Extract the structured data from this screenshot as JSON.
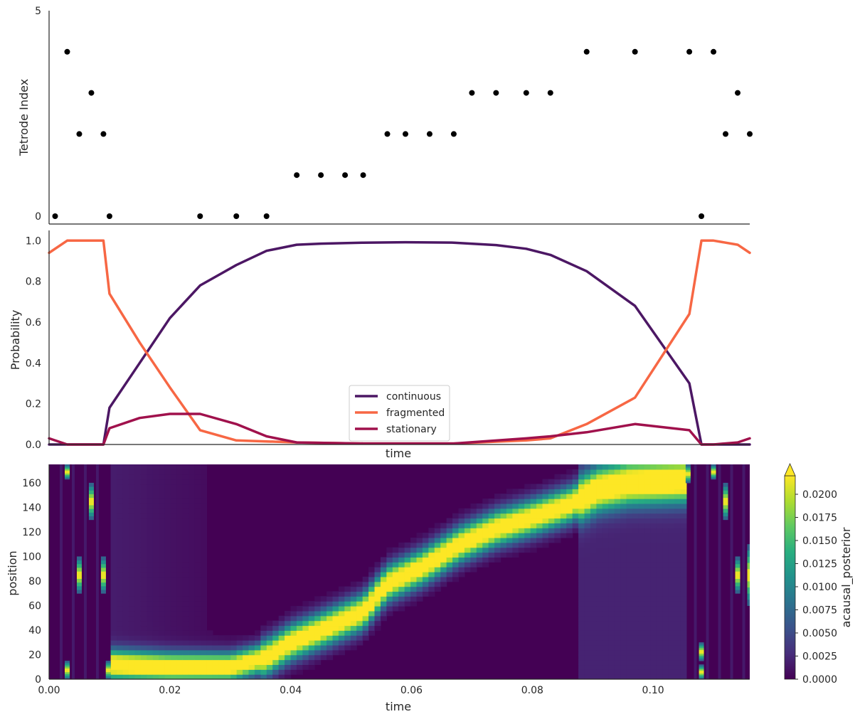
{
  "figure": {
    "colors": {
      "spikes": "#000000",
      "continuous": "#4c1764",
      "fragmented": "#f76744",
      "stationary": "#a0114c",
      "axis": "#262626"
    }
  },
  "chart_data": [
    {
      "type": "scatter",
      "ylabel": "Tetrode Index",
      "xlabel": "",
      "xlim": [
        0,
        0.116
      ],
      "ylim": [
        0,
        5
      ],
      "y_ticks": [
        "0",
        "5"
      ],
      "points": [
        {
          "x": 0.001,
          "y": 0
        },
        {
          "x": 0.003,
          "y": 4
        },
        {
          "x": 0.005,
          "y": 2
        },
        {
          "x": 0.007,
          "y": 3
        },
        {
          "x": 0.009,
          "y": 2
        },
        {
          "x": 0.01,
          "y": 0
        },
        {
          "x": 0.025,
          "y": 0
        },
        {
          "x": 0.031,
          "y": 0
        },
        {
          "x": 0.036,
          "y": 0
        },
        {
          "x": 0.041,
          "y": 1
        },
        {
          "x": 0.045,
          "y": 1
        },
        {
          "x": 0.049,
          "y": 1
        },
        {
          "x": 0.052,
          "y": 1
        },
        {
          "x": 0.056,
          "y": 2
        },
        {
          "x": 0.059,
          "y": 2
        },
        {
          "x": 0.063,
          "y": 2
        },
        {
          "x": 0.067,
          "y": 2
        },
        {
          "x": 0.07,
          "y": 3
        },
        {
          "x": 0.074,
          "y": 3
        },
        {
          "x": 0.079,
          "y": 3
        },
        {
          "x": 0.083,
          "y": 3
        },
        {
          "x": 0.089,
          "y": 4
        },
        {
          "x": 0.097,
          "y": 4
        },
        {
          "x": 0.106,
          "y": 4
        },
        {
          "x": 0.108,
          "y": 0
        },
        {
          "x": 0.11,
          "y": 4
        },
        {
          "x": 0.112,
          "y": 2
        },
        {
          "x": 0.114,
          "y": 3
        },
        {
          "x": 0.116,
          "y": 2
        }
      ]
    },
    {
      "type": "line",
      "xlabel": "time",
      "ylabel": "Probability",
      "xlim": [
        0,
        0.116
      ],
      "ylim": [
        0,
        1.05
      ],
      "y_ticks": [
        "0.0",
        "0.2",
        "0.4",
        "0.6",
        "0.8",
        "1.0"
      ],
      "legend": "lower-center",
      "series": [
        {
          "name": "continuous",
          "x": [
            0,
            0.003,
            0.009,
            0.01,
            0.015,
            0.02,
            0.025,
            0.031,
            0.036,
            0.041,
            0.045,
            0.052,
            0.059,
            0.067,
            0.074,
            0.079,
            0.083,
            0.089,
            0.097,
            0.106,
            0.108,
            0.11,
            0.114,
            0.116
          ],
          "y": [
            0.0,
            0.0,
            0.0,
            0.18,
            0.4,
            0.62,
            0.78,
            0.88,
            0.95,
            0.98,
            0.985,
            0.99,
            0.992,
            0.99,
            0.978,
            0.96,
            0.93,
            0.85,
            0.68,
            0.3,
            0.0,
            0.0,
            0.0,
            0.0
          ]
        },
        {
          "name": "fragmented",
          "x": [
            0,
            0.003,
            0.009,
            0.01,
            0.015,
            0.02,
            0.025,
            0.031,
            0.036,
            0.041,
            0.052,
            0.067,
            0.079,
            0.083,
            0.089,
            0.097,
            0.106,
            0.108,
            0.11,
            0.114,
            0.116
          ],
          "y": [
            0.94,
            1.0,
            1.0,
            0.74,
            0.5,
            0.28,
            0.07,
            0.02,
            0.015,
            0.01,
            0.005,
            0.005,
            0.02,
            0.03,
            0.1,
            0.23,
            0.64,
            1.0,
            1.0,
            0.98,
            0.94
          ]
        },
        {
          "name": "stationary",
          "x": [
            0,
            0.003,
            0.009,
            0.01,
            0.015,
            0.02,
            0.025,
            0.031,
            0.036,
            0.041,
            0.052,
            0.067,
            0.079,
            0.083,
            0.089,
            0.097,
            0.106,
            0.108,
            0.11,
            0.114,
            0.116
          ],
          "y": [
            0.03,
            0.0,
            0.0,
            0.08,
            0.13,
            0.15,
            0.15,
            0.1,
            0.04,
            0.01,
            0.005,
            0.005,
            0.03,
            0.04,
            0.06,
            0.1,
            0.07,
            0.0,
            0.0,
            0.01,
            0.03
          ]
        }
      ]
    },
    {
      "type": "heatmap",
      "xlabel": "time",
      "ylabel": "position",
      "xlim": [
        0,
        0.116
      ],
      "ylim": [
        0,
        175
      ],
      "x_ticks": [
        "0.00",
        "0.02",
        "0.04",
        "0.06",
        "0.08",
        "0.10"
      ],
      "y_ticks": [
        "0",
        "20",
        "40",
        "60",
        "80",
        "100",
        "120",
        "140",
        "160"
      ],
      "colormap": "viridis",
      "colorbar": {
        "label": "acausal_posterior",
        "range": [
          0,
          0.022
        ],
        "ticks": [
          "0.0000",
          "0.0025",
          "0.0050",
          "0.0075",
          "0.0100",
          "0.0125",
          "0.0150",
          "0.0175",
          "0.0200"
        ],
        "extend": "max"
      },
      "ridge": [
        {
          "t": 0.01,
          "pos": 12
        },
        {
          "t": 0.02,
          "pos": 10
        },
        {
          "t": 0.03,
          "pos": 10
        },
        {
          "t": 0.036,
          "pos": 18
        },
        {
          "t": 0.04,
          "pos": 30
        },
        {
          "t": 0.045,
          "pos": 40
        },
        {
          "t": 0.052,
          "pos": 55
        },
        {
          "t": 0.056,
          "pos": 78
        },
        {
          "t": 0.062,
          "pos": 92
        },
        {
          "t": 0.068,
          "pos": 110
        },
        {
          "t": 0.074,
          "pos": 123
        },
        {
          "t": 0.08,
          "pos": 132
        },
        {
          "t": 0.086,
          "pos": 142
        },
        {
          "t": 0.091,
          "pos": 155
        },
        {
          "t": 0.096,
          "pos": 160
        },
        {
          "t": 0.105,
          "pos": 162
        }
      ],
      "bright_columns": [
        {
          "t": 0.003,
          "pos": [
            0,
            15,
            163,
            175
          ]
        },
        {
          "t": 0.007,
          "pos": [
            130,
            160
          ]
        },
        {
          "t": 0.005,
          "pos": [
            70,
            100
          ]
        },
        {
          "t": 0.009,
          "pos": [
            70,
            100
          ]
        },
        {
          "t": 0.0098,
          "pos": [
            0,
            15
          ]
        },
        {
          "t": 0.1058,
          "pos": [
            160,
            175
          ]
        },
        {
          "t": 0.108,
          "pos": [
            0,
            12,
            15,
            30
          ]
        },
        {
          "t": 0.11,
          "pos": [
            163,
            175
          ]
        },
        {
          "t": 0.112,
          "pos": [
            130,
            160
          ]
        },
        {
          "t": 0.114,
          "pos": [
            70,
            100
          ]
        },
        {
          "t": 0.116,
          "pos": [
            60,
            110
          ]
        }
      ]
    }
  ]
}
